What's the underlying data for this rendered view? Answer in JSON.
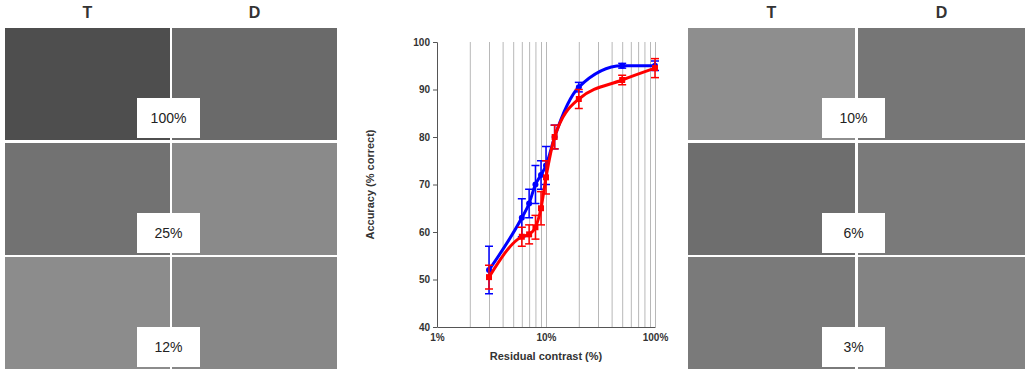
{
  "image_panels": {
    "left_columns": [
      "T",
      "D"
    ],
    "left_contrasts": [
      "100%",
      "25%",
      "12%"
    ],
    "right_columns": [
      "T",
      "D"
    ],
    "right_contrasts": [
      "10%",
      "6%",
      "3%"
    ]
  },
  "chart_data": {
    "type": "line",
    "x_label": "Residual contrast (%)",
    "y_label": "Accuracy (% correct)",
    "log": "x",
    "grid": true,
    "x": [
      3,
      6,
      7,
      8,
      9,
      10,
      12,
      20,
      50,
      100
    ],
    "series": [
      {
        "color": "#0000ff",
        "marker": "circle",
        "values": [
          52,
          63,
          66,
          70,
          72,
          74,
          80,
          90.5,
          95,
          95
        ],
        "errors": [
          5,
          4,
          3,
          4,
          3,
          4,
          2.5,
          1,
          0.5,
          1
        ]
      },
      {
        "color": "#ff0000",
        "marker": "square",
        "values": [
          50.5,
          59,
          59.5,
          61,
          65,
          71.5,
          80,
          88,
          92,
          94.5
        ],
        "errors": [
          2.5,
          2,
          2,
          2.5,
          3.5,
          3.5,
          2.5,
          2,
          1,
          2
        ]
      }
    ],
    "xlim": [
      1,
      100
    ],
    "xticks": [
      {
        "value": 1,
        "label": "1%"
      },
      {
        "value": 2,
        "label": null
      },
      {
        "value": 3,
        "label": null
      },
      {
        "value": 4,
        "label": null
      },
      {
        "value": 5,
        "label": null
      },
      {
        "value": 6,
        "label": null
      },
      {
        "value": 7,
        "label": null
      },
      {
        "value": 8,
        "label": null
      },
      {
        "value": 9,
        "label": null
      },
      {
        "value": 10,
        "label": "10%"
      },
      {
        "value": 20,
        "label": null
      },
      {
        "value": 30,
        "label": null
      },
      {
        "value": 40,
        "label": null
      },
      {
        "value": 50,
        "label": null
      },
      {
        "value": 60,
        "label": null
      },
      {
        "value": 70,
        "label": null
      },
      {
        "value": 80,
        "label": null
      },
      {
        "value": 90,
        "label": null
      },
      {
        "value": 100,
        "label": "100%"
      }
    ],
    "ylim": [
      40,
      100
    ],
    "yticks": [
      40,
      50,
      60,
      70,
      80,
      90,
      100
    ]
  }
}
